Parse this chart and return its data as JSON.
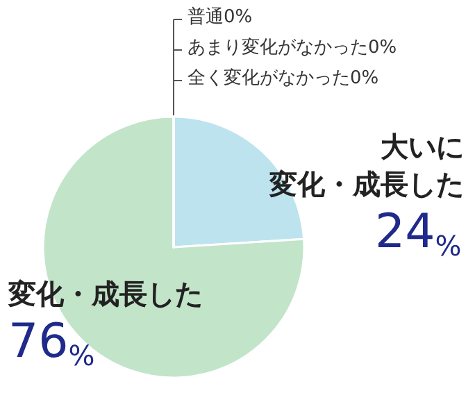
{
  "chart_data": {
    "type": "pie",
    "categories": [
      "大いに変化・成長した",
      "変化・成長した",
      "普通",
      "あまり変化がなかった",
      "全く変化がなかった"
    ],
    "values": [
      24,
      76,
      0,
      0,
      0
    ],
    "value_labels": [
      "24%",
      "76%",
      "0%",
      "0%",
      "0%"
    ],
    "colors": [
      "#bde3ee",
      "#c2e4c9",
      "#c2e4c9",
      "#c2e4c9",
      "#c2e4c9"
    ]
  }
}
